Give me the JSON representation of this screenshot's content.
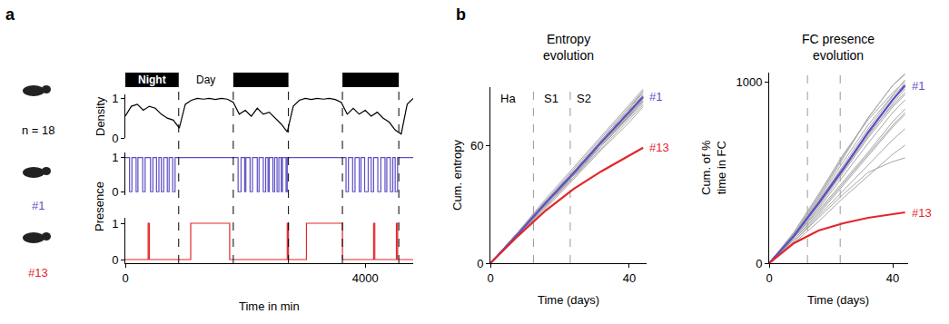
{
  "chart_data": [
    {
      "panel": "a",
      "type": "line",
      "y_title": "Density",
      "series": [
        {
          "name": "n = 18",
          "color": "#000000",
          "x": [
            0,
            100,
            200,
            300,
            400,
            500,
            600,
            700,
            800,
            900,
            1000,
            1100,
            1200,
            1300,
            1400,
            1500,
            1600,
            1700,
            1800,
            1900,
            2000,
            2100,
            2200,
            2300,
            2400,
            2500,
            2600,
            2700,
            2800,
            2900,
            3000,
            3100,
            3200,
            3300,
            3400,
            3500,
            3600,
            3700,
            3800,
            3900,
            4000,
            4100,
            4200,
            4300,
            4400,
            4500,
            4600,
            4700,
            4800
          ],
          "values": [
            0.55,
            0.8,
            0.85,
            0.7,
            0.8,
            0.75,
            0.6,
            0.5,
            0.45,
            0.25,
            0.85,
            0.95,
            1,
            0.98,
            1,
            0.97,
            1,
            0.98,
            0.9,
            0.6,
            0.7,
            0.55,
            0.75,
            0.6,
            0.65,
            0.5,
            0.35,
            0.15,
            0.8,
            0.95,
            1,
            0.97,
            1,
            0.98,
            1,
            0.97,
            0.9,
            0.6,
            0.75,
            0.6,
            0.7,
            0.55,
            0.65,
            0.5,
            0.4,
            0.2,
            0.1,
            0.85,
            1
          ]
        }
      ],
      "xlim": [
        0,
        4800
      ],
      "ylim": [
        0,
        1.1
      ],
      "yticks": [
        0,
        1
      ],
      "tick_labels": "y",
      "night": [
        [
          0,
          890
        ],
        [
          1800,
          2720
        ],
        [
          3620,
          4560
        ]
      ],
      "night_label": "Night",
      "day_label": "Day"
    },
    {
      "panel": "a",
      "type": "line",
      "y_title": "Presence",
      "series": [
        {
          "name": "#1",
          "color": "#5b4fc4",
          "line_style": "step",
          "x": [
            0,
            70,
            110,
            180,
            210,
            290,
            330,
            420,
            460,
            520,
            560,
            600,
            640,
            700,
            730,
            790,
            830,
            1880,
            1930,
            1990,
            2010,
            2080,
            2120,
            2200,
            2230,
            2300,
            2340,
            2380,
            2400,
            2460,
            2490,
            2530,
            2560,
            2600,
            2620,
            2680,
            2700,
            3680,
            3720,
            3790,
            3830,
            3900,
            3930,
            3990,
            4050,
            4100,
            4140,
            4210,
            4260,
            4330,
            4360,
            4420,
            4460,
            4500,
            4540,
            4800
          ],
          "values": [
            1,
            0,
            1,
            0,
            1,
            0,
            1,
            0,
            1,
            0,
            1,
            0,
            1,
            0,
            1,
            0,
            1,
            0,
            1,
            0,
            1,
            0,
            1,
            0,
            1,
            0,
            1,
            0,
            1,
            0,
            1,
            0,
            1,
            0,
            1,
            0,
            1,
            0,
            1,
            0,
            1,
            0,
            1,
            0,
            1,
            0,
            1,
            0,
            1,
            0,
            1,
            0,
            1,
            0,
            1,
            1
          ]
        }
      ],
      "xlim": [
        0,
        4800
      ],
      "ylim": [
        -0.1,
        1.15
      ],
      "yticks": [
        0,
        1
      ],
      "tick_labels": "y"
    },
    {
      "panel": "a",
      "type": "line",
      "x_title": "Time in min",
      "series": [
        {
          "name": "#13",
          "color": "#e3262b",
          "line_style": "step",
          "x": [
            0,
            380,
            400,
            1090,
            1740,
            2700,
            2720,
            3020,
            3620,
            4140,
            4160,
            4520,
            4540,
            4800
          ],
          "values": [
            0,
            1,
            0,
            1,
            0,
            1,
            0,
            1,
            0,
            1,
            0,
            1,
            0,
            0
          ]
        }
      ],
      "xlim": [
        0,
        4800
      ],
      "ylim": [
        -0.1,
        1.15
      ],
      "xticks": [
        0,
        4000
      ],
      "yticks": [
        0,
        1
      ]
    },
    {
      "panel": "b",
      "type": "line",
      "title": "Entropy evolution",
      "x_title": "Time (days)",
      "y_title": "Cum. entropy",
      "x": [
        0,
        8,
        16,
        24,
        32,
        40,
        44
      ],
      "series": [
        {
          "color": "#a6a6a6",
          "values": [
            0,
            15,
            31,
            46,
            62,
            77,
            85
          ]
        },
        {
          "color": "#a6a6a6",
          "values": [
            0,
            16,
            32,
            48,
            64,
            80,
            88
          ]
        },
        {
          "color": "#a6a6a6",
          "values": [
            0,
            15,
            30,
            45,
            60,
            75,
            83
          ]
        },
        {
          "color": "#a6a6a6",
          "values": [
            0,
            14,
            29,
            44,
            59,
            74,
            81
          ]
        },
        {
          "color": "#a6a6a6",
          "values": [
            0,
            16,
            31,
            47,
            63,
            79,
            87
          ]
        },
        {
          "color": "#a6a6a6",
          "values": [
            0,
            15,
            31,
            47,
            62,
            78,
            86
          ]
        },
        {
          "color": "#a6a6a6",
          "values": [
            0,
            14,
            28,
            43,
            58,
            72,
            80
          ]
        },
        {
          "color": "#a6a6a6",
          "values": [
            0,
            16,
            32,
            47,
            63,
            79,
            88
          ]
        },
        {
          "color": "#a6a6a6",
          "values": [
            0,
            15,
            30,
            46,
            61,
            76,
            84
          ]
        },
        {
          "color": "#a6a6a6",
          "values": [
            0,
            14,
            29,
            45,
            60,
            75,
            82
          ]
        },
        {
          "color": "#a6a6a6",
          "values": [
            0,
            15,
            30,
            45,
            61,
            76,
            83
          ]
        },
        {
          "color": "#a6a6a6",
          "values": [
            0,
            16,
            31,
            46,
            62,
            78,
            86
          ]
        },
        {
          "color": "#a6a6a6",
          "values": [
            0,
            15,
            29,
            44,
            60,
            75,
            83
          ]
        },
        {
          "color": "#a6a6a6",
          "values": [
            0,
            14,
            30,
            45,
            60,
            76,
            84
          ]
        },
        {
          "color": "#a6a6a6",
          "values": [
            0,
            15,
            31,
            46,
            61,
            77,
            85
          ]
        },
        {
          "color": "#a6a6a6",
          "values": [
            0,
            16,
            33,
            49,
            65,
            81,
            89
          ]
        },
        {
          "name": "#1",
          "color": "#5b4fc4",
          "values": [
            0,
            15,
            31,
            46,
            62,
            77,
            85
          ]
        },
        {
          "name": "#13",
          "color": "#e3262b",
          "values": [
            0,
            14,
            27,
            38,
            47,
            55,
            59
          ]
        }
      ],
      "xlim": [
        0,
        45
      ],
      "ylim": [
        0,
        90
      ],
      "xticks": [
        0,
        40
      ],
      "yticks": [
        0,
        60
      ],
      "boundaries": [
        12.4,
        23
      ],
      "phase_labels": [
        {
          "text": "Ha",
          "x": 5,
          "y": 84
        },
        {
          "text": "S1",
          "x": 17.5,
          "y": 84
        },
        {
          "text": "S2",
          "x": 27,
          "y": 84
        }
      ]
    },
    {
      "panel": "b",
      "type": "line",
      "title": "FC presence evolution",
      "x_title": "Time (days)",
      "y_title": "Cum. of % time in FC",
      "x": [
        0,
        8,
        16,
        24,
        32,
        40,
        44
      ],
      "series": [
        {
          "color": "#a6a6a6",
          "values": [
            0,
            160,
            360,
            580,
            800,
            980,
            1040
          ]
        },
        {
          "color": "#a6a6a6",
          "values": [
            0,
            140,
            300,
            480,
            660,
            830,
            900
          ]
        },
        {
          "color": "#a6a6a6",
          "values": [
            0,
            170,
            380,
            600,
            790,
            940,
            1000
          ]
        },
        {
          "color": "#a6a6a6",
          "values": [
            0,
            120,
            260,
            400,
            540,
            680,
            740
          ]
        },
        {
          "color": "#a6a6a6",
          "values": [
            0,
            150,
            320,
            510,
            700,
            880,
            960
          ]
        },
        {
          "color": "#a6a6a6",
          "values": [
            0,
            130,
            280,
            440,
            600,
            760,
            830
          ]
        },
        {
          "color": "#a6a6a6",
          "values": [
            0,
            160,
            350,
            560,
            760,
            930,
            1010
          ]
        },
        {
          "color": "#a6a6a6",
          "values": [
            0,
            110,
            230,
            360,
            480,
            600,
            650
          ]
        },
        {
          "color": "#a6a6a6",
          "values": [
            0,
            140,
            310,
            500,
            690,
            860,
            930
          ]
        },
        {
          "color": "#a6a6a6",
          "values": [
            0,
            150,
            340,
            540,
            740,
            920,
            990
          ]
        },
        {
          "color": "#a6a6a6",
          "values": [
            0,
            120,
            250,
            380,
            500,
            560,
            580
          ]
        },
        {
          "color": "#a6a6a6",
          "values": [
            0,
            160,
            340,
            530,
            720,
            900,
            970
          ]
        },
        {
          "color": "#a6a6a6",
          "values": [
            0,
            140,
            290,
            450,
            610,
            780,
            850
          ]
        },
        {
          "color": "#a6a6a6",
          "values": [
            0,
            170,
            370,
            590,
            800,
            980,
            1045
          ]
        },
        {
          "color": "#a6a6a6",
          "values": [
            0,
            130,
            270,
            430,
            590,
            750,
            820
          ]
        },
        {
          "color": "#a6a6a6",
          "values": [
            0,
            150,
            330,
            520,
            710,
            870,
            940
          ]
        },
        {
          "name": "#1",
          "color": "#5b4fc4",
          "values": [
            0,
            150,
            330,
            520,
            720,
            900,
            980
          ]
        },
        {
          "name": "#13",
          "color": "#e3262b",
          "values": [
            0,
            110,
            180,
            220,
            250,
            270,
            280
          ]
        }
      ],
      "xlim": [
        0,
        45
      ],
      "ylim": [
        0,
        1050
      ],
      "xticks": [
        0,
        40
      ],
      "yticks": [
        0,
        1000
      ],
      "boundaries": [
        12.4,
        23
      ]
    }
  ]
}
